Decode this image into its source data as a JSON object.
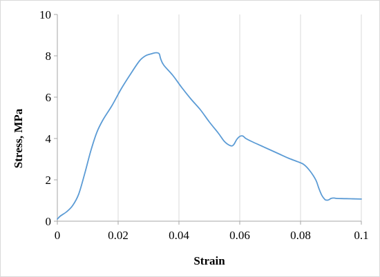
{
  "chart_data": {
    "type": "line",
    "title": "",
    "xlabel": "Strain",
    "ylabel": "Stress, MPa",
    "xlim": [
      0,
      0.1
    ],
    "ylim": [
      0,
      10
    ],
    "x_ticks": [
      0,
      0.02,
      0.04,
      0.06,
      0.08,
      0.1
    ],
    "x_tick_labels": [
      "0",
      "0.02",
      "0.04",
      "0.06",
      "0.08",
      "0.1"
    ],
    "y_ticks": [
      0,
      2,
      4,
      6,
      8,
      10
    ],
    "y_tick_labels": [
      "0",
      "2",
      "4",
      "6",
      "8",
      "10"
    ],
    "grid": "vertical",
    "legend": "none",
    "series": [
      {
        "color": "#5b9bd5",
        "x": [
          0,
          0.001,
          0.003,
          0.005,
          0.007,
          0.009,
          0.011,
          0.013,
          0.015,
          0.018,
          0.021,
          0.024,
          0.027,
          0.029,
          0.031,
          0.0325,
          0.0335,
          0.034,
          0.035,
          0.038,
          0.041,
          0.044,
          0.047,
          0.05,
          0.053,
          0.055,
          0.057,
          0.058,
          0.059,
          0.06,
          0.061,
          0.062,
          0.064,
          0.067,
          0.07,
          0.073,
          0.076,
          0.079,
          0.081,
          0.083,
          0.085,
          0.086,
          0.087,
          0.088,
          0.0885,
          0.089,
          0.0895,
          0.09,
          0.091,
          0.092,
          0.095,
          0.1
        ],
        "y": [
          0.1,
          0.25,
          0.45,
          0.75,
          1.3,
          2.3,
          3.4,
          4.3,
          4.9,
          5.6,
          6.4,
          7.1,
          7.75,
          8.0,
          8.1,
          8.15,
          8.1,
          7.85,
          7.55,
          7.05,
          6.45,
          5.9,
          5.4,
          4.8,
          4.25,
          3.85,
          3.65,
          3.7,
          3.95,
          4.1,
          4.12,
          4.0,
          3.85,
          3.65,
          3.45,
          3.25,
          3.05,
          2.88,
          2.75,
          2.45,
          2.0,
          1.6,
          1.25,
          1.05,
          1.02,
          1.02,
          1.05,
          1.1,
          1.12,
          1.1,
          1.09,
          1.07
        ]
      }
    ]
  }
}
